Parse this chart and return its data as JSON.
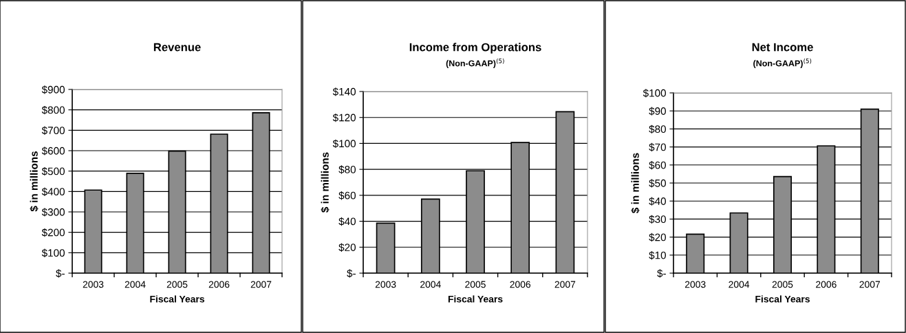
{
  "chart_data": [
    {
      "type": "bar",
      "title": "Revenue",
      "xlabel": "Fiscal Years",
      "ylabel": "$ in millions",
      "categories": [
        "2003",
        "2004",
        "2005",
        "2006",
        "2007"
      ],
      "values": [
        407,
        489,
        598,
        681,
        786
      ],
      "color": "#8c8c8c",
      "ylim": [
        0,
        900
      ],
      "yticks": [
        {
          "value": 0,
          "label": "$-"
        },
        {
          "value": 100,
          "label": "$100"
        },
        {
          "value": 200,
          "label": "$200"
        },
        {
          "value": 300,
          "label": "$300"
        },
        {
          "value": 400,
          "label": "$400"
        },
        {
          "value": 500,
          "label": "$500"
        },
        {
          "value": 600,
          "label": "$600"
        },
        {
          "value": 700,
          "label": "$700"
        },
        {
          "value": 800,
          "label": "$800"
        },
        {
          "value": 900,
          "label": "$900"
        }
      ],
      "grid": "y"
    },
    {
      "type": "bar",
      "title": "Income from Operations",
      "subtitle": "(Non-GAAP)$^{(5)}$",
      "xlabel": "Fiscal Years",
      "ylabel": "$ in millions",
      "categories": [
        "2003",
        "2004",
        "2005",
        "2006",
        "2007"
      ],
      "values": [
        38.5,
        57.1,
        78.9,
        100.7,
        124.4
      ],
      "color": "#8c8c8c",
      "ylim": [
        0,
        140
      ],
      "yticks": [
        {
          "value": 0,
          "label": "$-"
        },
        {
          "value": 20,
          "label": "$20"
        },
        {
          "value": 40,
          "label": "$40"
        },
        {
          "value": 60,
          "label": "$60"
        },
        {
          "value": 80,
          "label": "$80"
        },
        {
          "value": 100,
          "label": "$100"
        },
        {
          "value": 120,
          "label": "$120"
        },
        {
          "value": 140,
          "label": "$140"
        }
      ],
      "grid": "y"
    },
    {
      "type": "bar",
      "title": "Net Income",
      "subtitle": "(Non-GAAP)$^{(5)}$",
      "xlabel": "Fiscal Years",
      "ylabel": "$ in millions",
      "categories": [
        "2003",
        "2004",
        "2005",
        "2006",
        "2007"
      ],
      "values": [
        21.6,
        33.4,
        53.6,
        70.6,
        91.0
      ],
      "color": "#8c8c8c",
      "ylim": [
        0,
        100
      ],
      "yticks": [
        {
          "value": 0,
          "label": "$-"
        },
        {
          "value": 10,
          "label": "$10"
        },
        {
          "value": 20,
          "label": "$20"
        },
        {
          "value": 30,
          "label": "$30"
        },
        {
          "value": 40,
          "label": "$40"
        },
        {
          "value": 50,
          "label": "$50"
        },
        {
          "value": 60,
          "label": "$60"
        },
        {
          "value": 70,
          "label": "$70"
        },
        {
          "value": 80,
          "label": "$80"
        },
        {
          "value": 90,
          "label": "$90"
        },
        {
          "value": 100,
          "label": "$100"
        }
      ],
      "grid": "y"
    }
  ]
}
